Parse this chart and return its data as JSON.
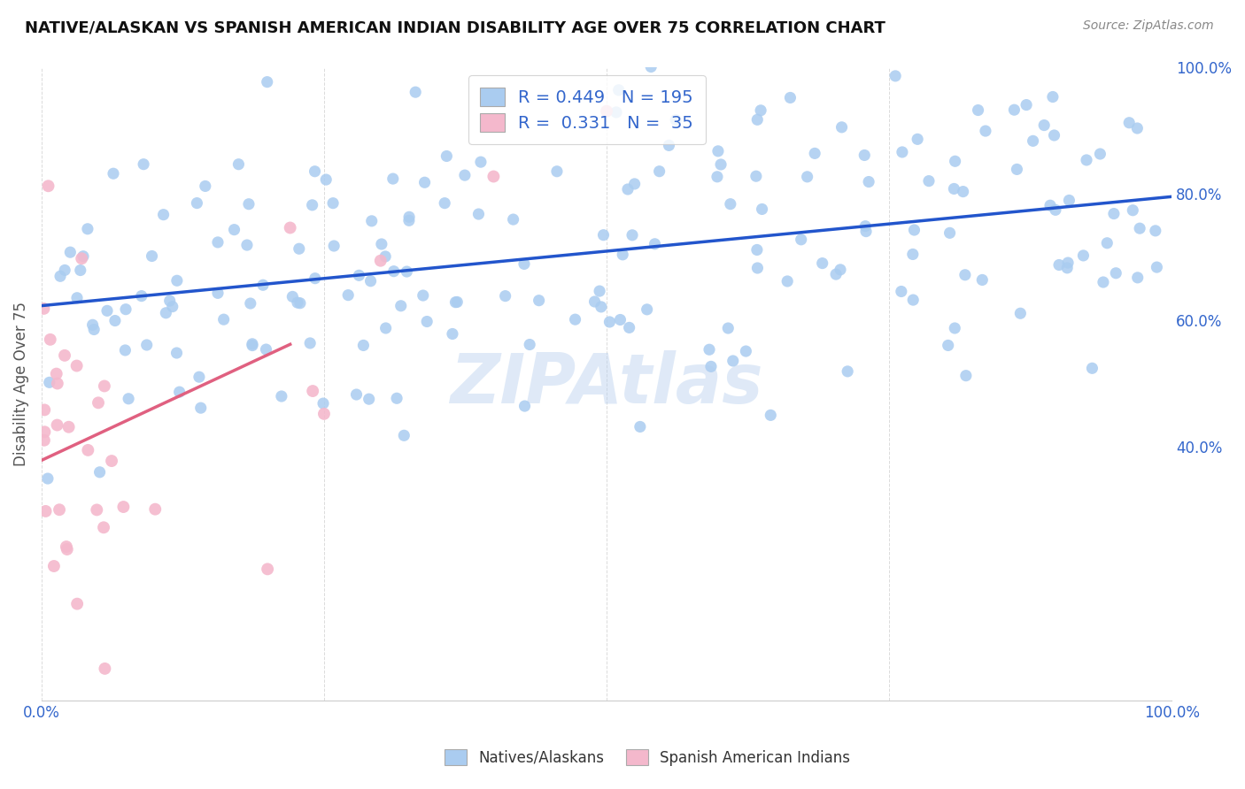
{
  "title": "NATIVE/ALASKAN VS SPANISH AMERICAN INDIAN DISABILITY AGE OVER 75 CORRELATION CHART",
  "source": "Source: ZipAtlas.com",
  "ylabel": "Disability Age Over 75",
  "blue_R": "0.449",
  "blue_N": "195",
  "pink_R": "0.331",
  "pink_N": "35",
  "blue_color": "#aaccf0",
  "pink_color": "#f4b8cc",
  "blue_line_color": "#2255cc",
  "pink_line_color": "#e06080",
  "watermark": "ZIPAtlas",
  "legend_label_blue": "Natives/Alaskans",
  "legend_label_pink": "Spanish American Indians",
  "grid_color": "#cccccc",
  "tick_color": "#3366cc",
  "title_color": "#111111",
  "source_color": "#888888",
  "ylabel_color": "#555555",
  "background": "#ffffff",
  "xlim": [
    0.0,
    1.0
  ],
  "ylim": [
    0.0,
    1.0
  ],
  "ytick_right_vals": [
    0.4,
    0.6,
    0.8,
    1.0
  ],
  "ytick_right_labels": [
    "40.0%",
    "60.0%",
    "80.0%",
    "100.0%"
  ],
  "xtick_vals": [
    0.0,
    0.25,
    0.5,
    0.75,
    1.0
  ],
  "xtick_labels": [
    "0.0%",
    "",
    "",
    "",
    "100.0%"
  ]
}
